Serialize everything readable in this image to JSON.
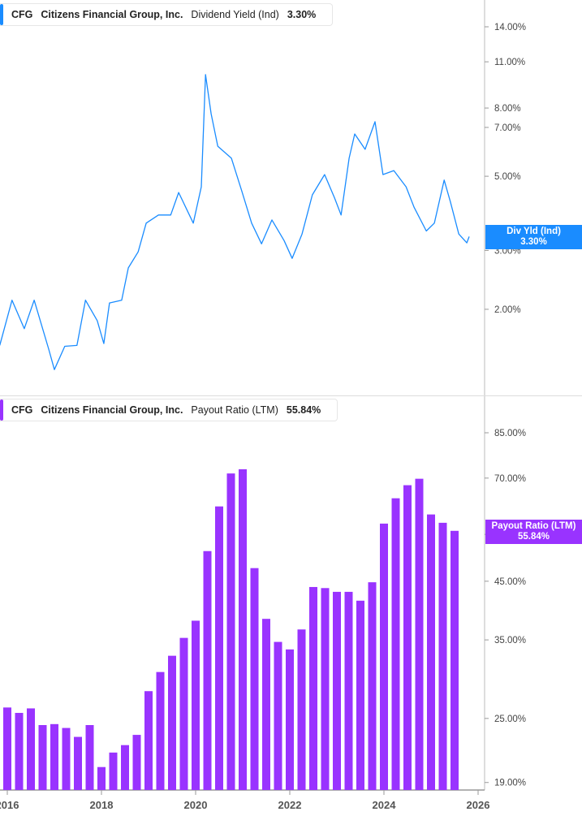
{
  "colors": {
    "yield": "#1a8cff",
    "payout": "#9933ff",
    "axis": "#999999"
  },
  "panels": {
    "top": {
      "ticker": "CFG",
      "company": "Citizens Financial Group, Inc.",
      "metric": "Dividend Yield (Ind)",
      "value": "3.30%",
      "tag_label": "Div Yld (Ind)",
      "tag_value": "3.30%"
    },
    "bottom": {
      "ticker": "CFG",
      "company": "Citizens Financial Group, Inc.",
      "metric": "Payout Ratio (LTM)",
      "value": "55.84%",
      "tag_label": "Payout Ratio (LTM)",
      "tag_value": "55.84%"
    }
  },
  "chart_data": [
    {
      "type": "line",
      "scale": "log",
      "name": "Dividend Yield (Ind)",
      "ylim": [
        1.3,
        15
      ],
      "yticks": [
        2,
        3,
        5,
        7,
        8,
        11,
        14
      ],
      "ytick_labels": [
        "2.00%",
        "3.00%",
        "5.00%",
        "7.00%",
        "8.00%",
        "11.00%",
        "14.00%"
      ],
      "x": [
        2015.84,
        2016.1,
        2016.36,
        2016.57,
        2016.88,
        2017.0,
        2017.22,
        2017.48,
        2017.66,
        2017.91,
        2018.05,
        2018.17,
        2018.43,
        2018.57,
        2018.78,
        2018.95,
        2019.21,
        2019.47,
        2019.64,
        2019.95,
        2020.12,
        2020.21,
        2020.33,
        2020.47,
        2020.76,
        2020.98,
        2021.19,
        2021.4,
        2021.62,
        2021.88,
        2022.05,
        2022.26,
        2022.48,
        2022.74,
        2022.95,
        2023.09,
        2023.26,
        2023.38,
        2023.6,
        2023.81,
        2023.98,
        2024.21,
        2024.47,
        2024.64,
        2024.9,
        2025.07,
        2025.28,
        2025.41,
        2025.59,
        2025.76,
        2025.81
      ],
      "y": [
        1.56,
        2.13,
        1.75,
        2.13,
        1.52,
        1.32,
        1.55,
        1.56,
        2.13,
        1.85,
        1.58,
        2.09,
        2.13,
        2.66,
        2.97,
        3.62,
        3.83,
        3.83,
        4.47,
        3.62,
        4.65,
        10.07,
        7.69,
        6.15,
        5.66,
        4.52,
        3.62,
        3.14,
        3.7,
        3.21,
        2.84,
        3.36,
        4.4,
        5.06,
        4.31,
        3.83,
        5.66,
        6.69,
        6.02,
        7.28,
        5.06,
        5.2,
        4.65,
        4.04,
        3.43,
        3.62,
        4.87,
        4.2,
        3.36,
        3.16,
        3.3
      ]
    },
    {
      "type": "bar",
      "scale": "log",
      "name": "Payout Ratio (LTM)",
      "ylim": [
        18.5,
        95
      ],
      "yticks": [
        19,
        25,
        35,
        45,
        55,
        70,
        85
      ],
      "ytick_labels": [
        "19.00%",
        "25.00%",
        "35.00%",
        "45.00%",
        "55.00%",
        "70.00%",
        "85.00%"
      ],
      "x": [
        2016.0,
        2016.25,
        2016.5,
        2016.75,
        2017.0,
        2017.25,
        2017.5,
        2017.75,
        2018.0,
        2018.25,
        2018.5,
        2018.75,
        2019.0,
        2019.25,
        2019.5,
        2019.75,
        2020.0,
        2020.25,
        2020.5,
        2020.75,
        2021.0,
        2021.25,
        2021.5,
        2021.75,
        2022.0,
        2022.25,
        2022.5,
        2022.75,
        2023.0,
        2023.25,
        2023.5,
        2023.75,
        2024.0,
        2024.25,
        2024.5,
        2024.75,
        2025.0,
        2025.25,
        2025.5
      ],
      "values": [
        26.2,
        25.6,
        26.1,
        24.3,
        24.4,
        24.0,
        23.1,
        24.3,
        20.3,
        21.6,
        22.3,
        23.3,
        28.1,
        30.5,
        32.7,
        35.3,
        38.0,
        51.2,
        62.0,
        71.4,
        72.7,
        47.6,
        38.3,
        34.7,
        33.6,
        36.6,
        43.9,
        43.7,
        43.0,
        43.0,
        41.4,
        44.8,
        57.6,
        64.2,
        67.9,
        69.8,
        59.9,
        57.8,
        55.84
      ]
    }
  ],
  "x_axis": {
    "ticks": [
      2016,
      2018,
      2020,
      2022,
      2024,
      2026
    ],
    "labels": [
      "2016",
      "2018",
      "2020",
      "2022",
      "2024",
      "2026"
    ]
  }
}
